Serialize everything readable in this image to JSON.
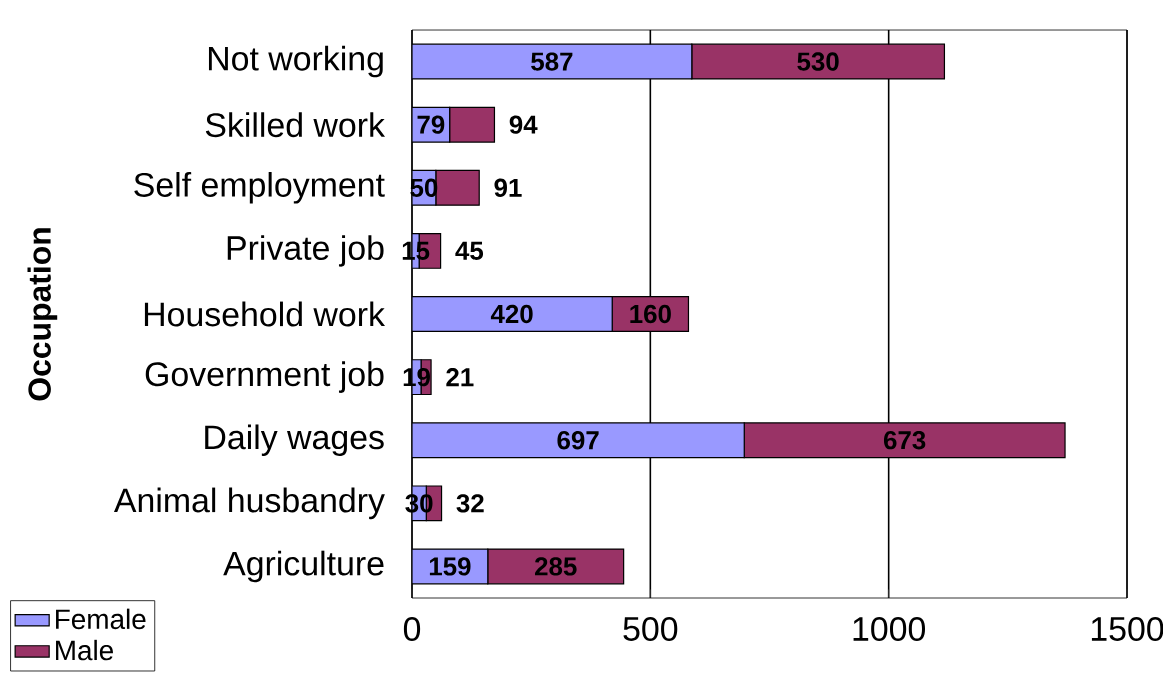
{
  "chart_data": {
    "type": "bar",
    "orientation": "horizontal",
    "stacked": true,
    "ylabel": "Occupation",
    "categories": [
      "Not working",
      "Skilled work",
      "Self employment",
      "Private job",
      "Household work",
      "Government job",
      "Daily wages",
      "Animal husbandry",
      "Agriculture"
    ],
    "series": [
      {
        "name": "Female",
        "color": "#9999ff",
        "values": [
          587,
          79,
          50,
          15,
          420,
          19,
          697,
          30,
          159
        ]
      },
      {
        "name": "Male",
        "color": "#993366",
        "values": [
          530,
          94,
          91,
          45,
          160,
          21,
          673,
          32,
          285
        ]
      }
    ],
    "xlim": [
      0,
      1500
    ],
    "xticks": [
      0,
      500,
      1000,
      1500
    ],
    "grid": "x",
    "legend": "bottom left",
    "data_labels": true
  }
}
